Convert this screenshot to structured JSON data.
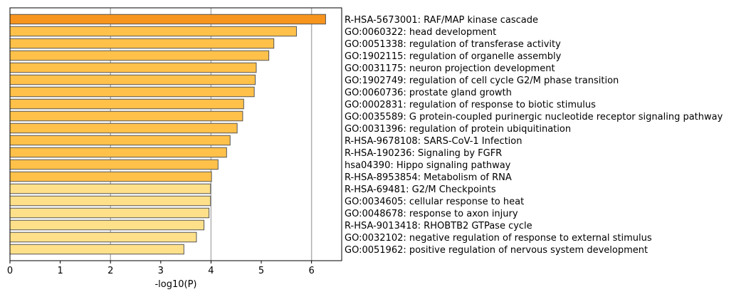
{
  "chart_data": {
    "type": "bar",
    "orientation": "horizontal",
    "title": "",
    "xlabel": "-log10(P)",
    "ylabel": "",
    "xlim": [
      0,
      6.6
    ],
    "x_ticks": [
      "0",
      "1",
      "2",
      "3",
      "4",
      "5",
      "6"
    ],
    "grid": "vertical at x=2, 4, 6",
    "categories": [
      "R-HSA-5673001: RAF/MAP kinase cascade",
      "GO:0060322: head development",
      "GO:0051338: regulation of transferase activity",
      "GO:1902115: regulation of organelle assembly",
      "GO:0031175: neuron projection development",
      "GO:1902749: regulation of cell cycle G2/M phase transition",
      "GO:0060736: prostate gland growth",
      "GO:0002831: regulation of response to biotic stimulus",
      "GO:0035589: G protein-coupled purinergic nucleotide receptor signaling pathway",
      "GO:0031396: regulation of protein ubiquitination",
      "R-HSA-9678108: SARS-CoV-1 Infection",
      "R-HSA-190236: Signaling by FGFR",
      "hsa04390: Hippo signaling pathway",
      "R-HSA-8953854: Metabolism of RNA",
      "R-HSA-69481: G2/M Checkpoints",
      "GO:0034605: cellular response to heat",
      "GO:0048678: response to axon injury",
      "R-HSA-9013418: RHOBTB2 GTPase cycle",
      "GO:0032102: negative regulation of response to external stimulus",
      "GO:0051962: positive regulation of nervous system development"
    ],
    "values": [
      6.28,
      5.7,
      5.25,
      5.15,
      4.9,
      4.88,
      4.86,
      4.65,
      4.63,
      4.52,
      4.38,
      4.31,
      4.14,
      4.01,
      3.99,
      3.99,
      3.96,
      3.86,
      3.71,
      3.46
    ],
    "bar_colors": [
      "#F7941D",
      "#FFC14A",
      "#FFC14A",
      "#FFC14A",
      "#FFC14A",
      "#FFC14A",
      "#FFC14A",
      "#FFC14A",
      "#FFC14A",
      "#FFC14A",
      "#FFC14A",
      "#FFC14A",
      "#FFC14A",
      "#FFC14A",
      "#FFE08A",
      "#FFE08A",
      "#FFE08A",
      "#FFE08A",
      "#FFE08A",
      "#FFE08A"
    ],
    "bar_edge_color": "#555555",
    "grid_color": "#b0b0b0"
  }
}
